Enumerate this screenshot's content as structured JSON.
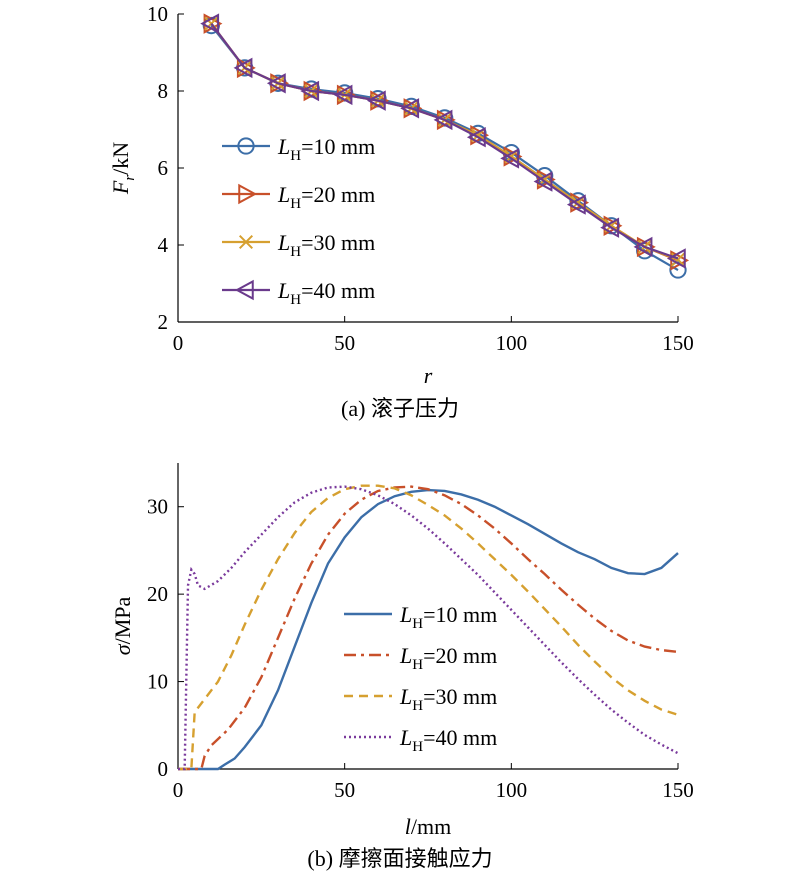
{
  "chart_data": [
    {
      "type": "line",
      "caption": "(a) 滚子压力",
      "xlabel": "r",
      "ylabel": "F_r/kN",
      "xlim": [
        0,
        150
      ],
      "ylim": [
        2,
        10
      ],
      "xticks": [
        0,
        50,
        100,
        150
      ],
      "yticks": [
        2,
        4,
        6,
        8,
        10
      ],
      "legend_position": "left-center",
      "grid": false,
      "x": [
        10,
        20,
        30,
        40,
        50,
        60,
        70,
        80,
        90,
        100,
        110,
        120,
        130,
        140,
        150
      ],
      "series": [
        {
          "name": "L_H=10 mm",
          "label_main": "L",
          "label_sub": "H",
          "label_rest": "=10 mm",
          "color": "#3c6ea8",
          "marker": "circle",
          "values": [
            9.7,
            8.6,
            8.2,
            8.05,
            7.95,
            7.8,
            7.6,
            7.3,
            6.9,
            6.4,
            5.8,
            5.15,
            4.5,
            3.85,
            3.35
          ]
        },
        {
          "name": "L_H=20 mm",
          "label_main": "L",
          "label_sub": "H",
          "label_rest": "=20 mm",
          "color": "#c8502a",
          "marker": "triangle-right",
          "values": [
            9.75,
            8.6,
            8.2,
            8.0,
            7.9,
            7.75,
            7.55,
            7.25,
            6.85,
            6.3,
            5.7,
            5.1,
            4.5,
            3.95,
            3.6
          ]
        },
        {
          "name": "L_H=30 mm",
          "label_main": "L",
          "label_sub": "H",
          "label_rest": "=30 mm",
          "color": "#d6a030",
          "marker": "x",
          "values": [
            9.75,
            8.6,
            8.2,
            8.0,
            7.9,
            7.75,
            7.55,
            7.25,
            6.85,
            6.3,
            5.7,
            5.1,
            4.5,
            3.95,
            3.62
          ]
        },
        {
          "name": "L_H=40 mm",
          "label_main": "L",
          "label_sub": "H",
          "label_rest": "=40 mm",
          "color": "#6a3a8c",
          "marker": "triangle-left",
          "values": [
            9.75,
            8.6,
            8.2,
            8.0,
            7.9,
            7.75,
            7.55,
            7.25,
            6.8,
            6.25,
            5.65,
            5.05,
            4.45,
            3.95,
            3.65
          ]
        }
      ]
    },
    {
      "type": "line",
      "caption": "(b) 摩擦面接触应力",
      "xlabel": "l/mm",
      "ylabel": "σ/MPa",
      "xlim": [
        0,
        150
      ],
      "ylim": [
        0,
        35
      ],
      "xticks": [
        0,
        50,
        100,
        150
      ],
      "yticks": [
        0,
        10,
        20,
        30
      ],
      "legend_position": "center-right",
      "grid": false,
      "series": [
        {
          "name": "L_H=10 mm",
          "label_main": "L",
          "label_sub": "H",
          "label_rest": "=10 mm",
          "color": "#3c6ea8",
          "dash": "solid",
          "points": [
            [
              0,
              0
            ],
            [
              12,
              0
            ],
            [
              14,
              0.5
            ],
            [
              17,
              1.2
            ],
            [
              20,
              2.5
            ],
            [
              25,
              5
            ],
            [
              30,
              9
            ],
            [
              35,
              14
            ],
            [
              40,
              19
            ],
            [
              45,
              23.5
            ],
            [
              50,
              26.5
            ],
            [
              55,
              28.8
            ],
            [
              60,
              30.3
            ],
            [
              65,
              31.2
            ],
            [
              70,
              31.7
            ],
            [
              75,
              31.9
            ],
            [
              80,
              31.8
            ],
            [
              85,
              31.4
            ],
            [
              90,
              30.8
            ],
            [
              95,
              30
            ],
            [
              100,
              29
            ],
            [
              105,
              28
            ],
            [
              110,
              26.9
            ],
            [
              115,
              25.8
            ],
            [
              120,
              24.8
            ],
            [
              125,
              24
            ],
            [
              130,
              23
            ],
            [
              135,
              22.4
            ],
            [
              140,
              22.3
            ],
            [
              145,
              23
            ],
            [
              150,
              24.7
            ]
          ]
        },
        {
          "name": "L_H=20 mm",
          "label_main": "L",
          "label_sub": "H",
          "label_rest": "=20 mm",
          "color": "#c8502a",
          "dash": "dashdot",
          "points": [
            [
              0,
              0
            ],
            [
              7,
              0
            ],
            [
              8,
              1.5
            ],
            [
              10,
              2.7
            ],
            [
              15,
              4.5
            ],
            [
              20,
              7
            ],
            [
              25,
              10.5
            ],
            [
              30,
              15
            ],
            [
              35,
              19.5
            ],
            [
              40,
              23.5
            ],
            [
              45,
              26.8
            ],
            [
              50,
              29.2
            ],
            [
              55,
              30.8
            ],
            [
              60,
              31.8
            ],
            [
              65,
              32.2
            ],
            [
              70,
              32.3
            ],
            [
              75,
              32
            ],
            [
              80,
              31.3
            ],
            [
              85,
              30.3
            ],
            [
              90,
              29
            ],
            [
              95,
              27.5
            ],
            [
              100,
              25.8
            ],
            [
              105,
              24
            ],
            [
              110,
              22.3
            ],
            [
              115,
              20.5
            ],
            [
              120,
              18.8
            ],
            [
              125,
              17.2
            ],
            [
              130,
              15.8
            ],
            [
              135,
              14.7
            ],
            [
              140,
              14
            ],
            [
              145,
              13.6
            ],
            [
              150,
              13.4
            ]
          ]
        },
        {
          "name": "L_H=30 mm",
          "label_main": "L",
          "label_sub": "H",
          "label_rest": "=30 mm",
          "color": "#d6a030",
          "dash": "dashed",
          "points": [
            [
              0,
              0
            ],
            [
              4,
              0
            ],
            [
              5,
              6.5
            ],
            [
              8,
              8
            ],
            [
              12,
              10
            ],
            [
              16,
              13
            ],
            [
              20,
              16.5
            ],
            [
              25,
              20.5
            ],
            [
              30,
              24
            ],
            [
              35,
              27
            ],
            [
              40,
              29.4
            ],
            [
              45,
              31
            ],
            [
              50,
              32
            ],
            [
              55,
              32.4
            ],
            [
              60,
              32.4
            ],
            [
              65,
              32.1
            ],
            [
              70,
              31.3
            ],
            [
              75,
              30.2
            ],
            [
              80,
              29
            ],
            [
              85,
              27.5
            ],
            [
              90,
              25.8
            ],
            [
              95,
              24
            ],
            [
              100,
              22.2
            ],
            [
              105,
              20.3
            ],
            [
              110,
              18.3
            ],
            [
              115,
              16.3
            ],
            [
              120,
              14.2
            ],
            [
              125,
              12.3
            ],
            [
              130,
              10.5
            ],
            [
              135,
              9
            ],
            [
              140,
              7.8
            ],
            [
              145,
              6.8
            ],
            [
              150,
              6.2
            ]
          ]
        },
        {
          "name": "L_H=40 mm",
          "label_main": "L",
          "label_sub": "H",
          "label_rest": "=40 mm",
          "color": "#7a3a9c",
          "dash": "dotted",
          "points": [
            [
              0,
              0
            ],
            [
              2,
              0
            ],
            [
              3,
              21
            ],
            [
              4,
              22.8
            ],
            [
              5,
              22.3
            ],
            [
              6,
              21
            ],
            [
              8,
              20.6
            ],
            [
              12,
              21.5
            ],
            [
              16,
              23
            ],
            [
              20,
              24.8
            ],
            [
              25,
              26.8
            ],
            [
              30,
              28.8
            ],
            [
              35,
              30.5
            ],
            [
              40,
              31.6
            ],
            [
              45,
              32.2
            ],
            [
              50,
              32.3
            ],
            [
              55,
              32
            ],
            [
              60,
              31.3
            ],
            [
              65,
              30.3
            ],
            [
              70,
              29
            ],
            [
              75,
              27.5
            ],
            [
              80,
              25.8
            ],
            [
              85,
              24
            ],
            [
              90,
              22.2
            ],
            [
              95,
              20.2
            ],
            [
              100,
              18.2
            ],
            [
              105,
              16.2
            ],
            [
              110,
              14.2
            ],
            [
              115,
              12.2
            ],
            [
              120,
              10.3
            ],
            [
              125,
              8.5
            ],
            [
              130,
              6.8
            ],
            [
              135,
              5.3
            ],
            [
              140,
              3.9
            ],
            [
              145,
              2.8
            ],
            [
              150,
              1.8
            ]
          ]
        }
      ]
    }
  ]
}
